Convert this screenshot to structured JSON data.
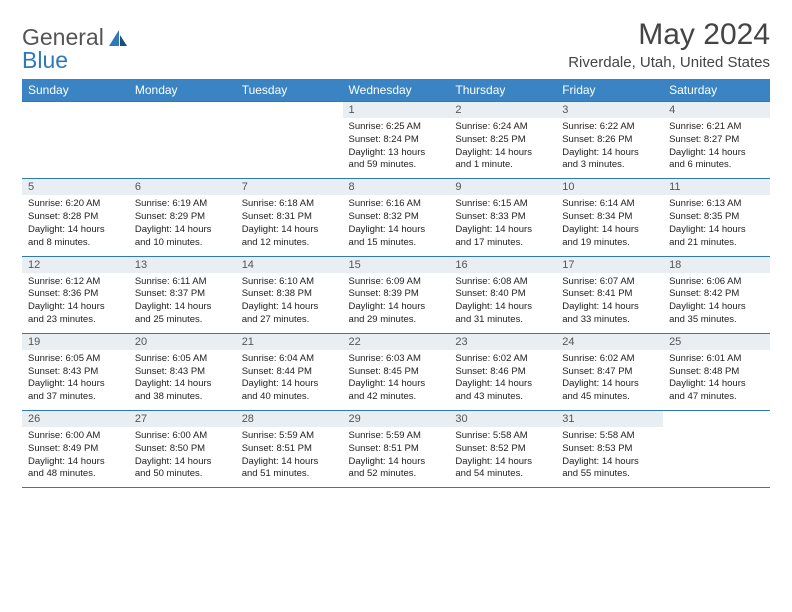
{
  "logo": {
    "text1": "General",
    "text2": "Blue"
  },
  "title": "May 2024",
  "location": "Riverdale, Utah, United States",
  "colors": {
    "header_bg": "#3a84c4",
    "header_fg": "#ffffff",
    "rule": "#2f79b9",
    "daynum_bg": "#e9eef2",
    "text": "#222222",
    "logo_gray": "#555555",
    "logo_blue": "#2f79b9"
  },
  "dow": [
    "Sunday",
    "Monday",
    "Tuesday",
    "Wednesday",
    "Thursday",
    "Friday",
    "Saturday"
  ],
  "weeks": [
    [
      {
        "empty": true
      },
      {
        "empty": true
      },
      {
        "empty": true
      },
      {
        "n": "1",
        "sr": "6:25 AM",
        "ss": "8:24 PM",
        "dl": "13 hours and 59 minutes."
      },
      {
        "n": "2",
        "sr": "6:24 AM",
        "ss": "8:25 PM",
        "dl": "14 hours and 1 minute."
      },
      {
        "n": "3",
        "sr": "6:22 AM",
        "ss": "8:26 PM",
        "dl": "14 hours and 3 minutes."
      },
      {
        "n": "4",
        "sr": "6:21 AM",
        "ss": "8:27 PM",
        "dl": "14 hours and 6 minutes."
      }
    ],
    [
      {
        "n": "5",
        "sr": "6:20 AM",
        "ss": "8:28 PM",
        "dl": "14 hours and 8 minutes."
      },
      {
        "n": "6",
        "sr": "6:19 AM",
        "ss": "8:29 PM",
        "dl": "14 hours and 10 minutes."
      },
      {
        "n": "7",
        "sr": "6:18 AM",
        "ss": "8:31 PM",
        "dl": "14 hours and 12 minutes."
      },
      {
        "n": "8",
        "sr": "6:16 AM",
        "ss": "8:32 PM",
        "dl": "14 hours and 15 minutes."
      },
      {
        "n": "9",
        "sr": "6:15 AM",
        "ss": "8:33 PM",
        "dl": "14 hours and 17 minutes."
      },
      {
        "n": "10",
        "sr": "6:14 AM",
        "ss": "8:34 PM",
        "dl": "14 hours and 19 minutes."
      },
      {
        "n": "11",
        "sr": "6:13 AM",
        "ss": "8:35 PM",
        "dl": "14 hours and 21 minutes."
      }
    ],
    [
      {
        "n": "12",
        "sr": "6:12 AM",
        "ss": "8:36 PM",
        "dl": "14 hours and 23 minutes."
      },
      {
        "n": "13",
        "sr": "6:11 AM",
        "ss": "8:37 PM",
        "dl": "14 hours and 25 minutes."
      },
      {
        "n": "14",
        "sr": "6:10 AM",
        "ss": "8:38 PM",
        "dl": "14 hours and 27 minutes."
      },
      {
        "n": "15",
        "sr": "6:09 AM",
        "ss": "8:39 PM",
        "dl": "14 hours and 29 minutes."
      },
      {
        "n": "16",
        "sr": "6:08 AM",
        "ss": "8:40 PM",
        "dl": "14 hours and 31 minutes."
      },
      {
        "n": "17",
        "sr": "6:07 AM",
        "ss": "8:41 PM",
        "dl": "14 hours and 33 minutes."
      },
      {
        "n": "18",
        "sr": "6:06 AM",
        "ss": "8:42 PM",
        "dl": "14 hours and 35 minutes."
      }
    ],
    [
      {
        "n": "19",
        "sr": "6:05 AM",
        "ss": "8:43 PM",
        "dl": "14 hours and 37 minutes."
      },
      {
        "n": "20",
        "sr": "6:05 AM",
        "ss": "8:43 PM",
        "dl": "14 hours and 38 minutes."
      },
      {
        "n": "21",
        "sr": "6:04 AM",
        "ss": "8:44 PM",
        "dl": "14 hours and 40 minutes."
      },
      {
        "n": "22",
        "sr": "6:03 AM",
        "ss": "8:45 PM",
        "dl": "14 hours and 42 minutes."
      },
      {
        "n": "23",
        "sr": "6:02 AM",
        "ss": "8:46 PM",
        "dl": "14 hours and 43 minutes."
      },
      {
        "n": "24",
        "sr": "6:02 AM",
        "ss": "8:47 PM",
        "dl": "14 hours and 45 minutes."
      },
      {
        "n": "25",
        "sr": "6:01 AM",
        "ss": "8:48 PM",
        "dl": "14 hours and 47 minutes."
      }
    ],
    [
      {
        "n": "26",
        "sr": "6:00 AM",
        "ss": "8:49 PM",
        "dl": "14 hours and 48 minutes."
      },
      {
        "n": "27",
        "sr": "6:00 AM",
        "ss": "8:50 PM",
        "dl": "14 hours and 50 minutes."
      },
      {
        "n": "28",
        "sr": "5:59 AM",
        "ss": "8:51 PM",
        "dl": "14 hours and 51 minutes."
      },
      {
        "n": "29",
        "sr": "5:59 AM",
        "ss": "8:51 PM",
        "dl": "14 hours and 52 minutes."
      },
      {
        "n": "30",
        "sr": "5:58 AM",
        "ss": "8:52 PM",
        "dl": "14 hours and 54 minutes."
      },
      {
        "n": "31",
        "sr": "5:58 AM",
        "ss": "8:53 PM",
        "dl": "14 hours and 55 minutes."
      },
      {
        "empty": true
      }
    ]
  ],
  "labels": {
    "sunrise": "Sunrise: ",
    "sunset": "Sunset: ",
    "daylight": "Daylight: "
  }
}
